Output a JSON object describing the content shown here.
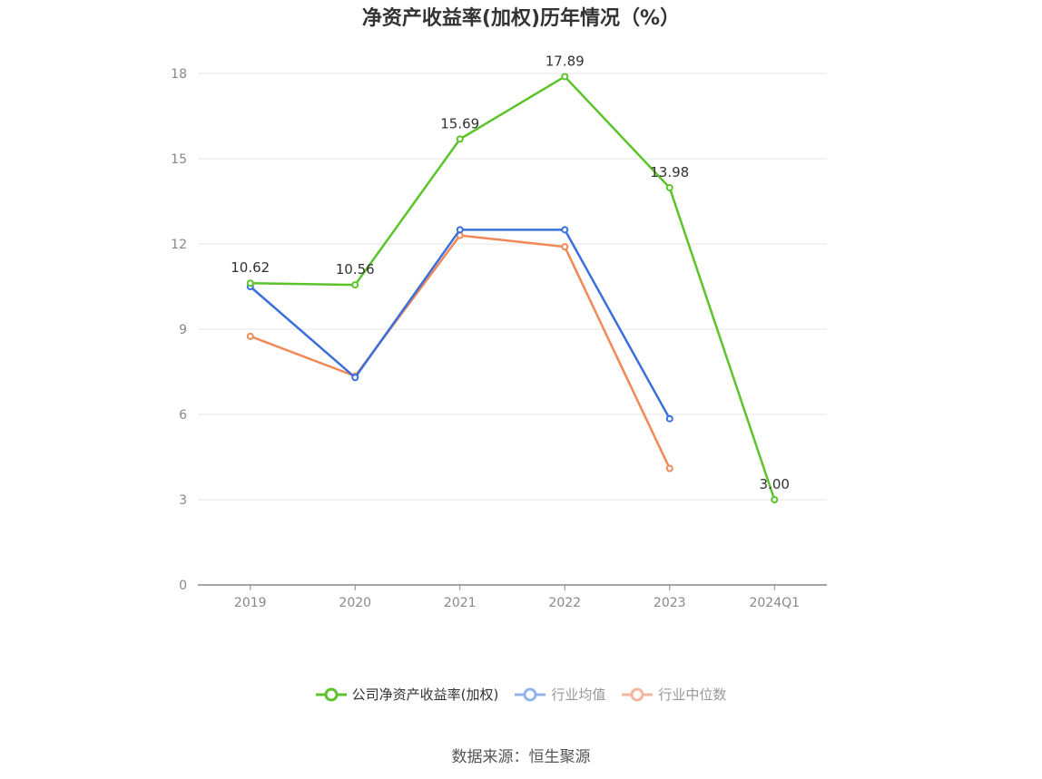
{
  "chart_data": {
    "type": "line",
    "title": "净资产收益率(加权)历年情况（%）",
    "categories": [
      "2019",
      "2020",
      "2021",
      "2022",
      "2023",
      "2024Q1"
    ],
    "ylim": [
      0,
      18
    ],
    "yticks": [
      0,
      3,
      6,
      9,
      12,
      15,
      18
    ],
    "grid": true,
    "legend_position": "bottom",
    "series": [
      {
        "name": "公司净资产收益率(加权)",
        "color": "#5bc42b",
        "values": [
          10.62,
          10.56,
          15.69,
          17.89,
          13.98,
          3.0
        ],
        "labels": [
          "10.62",
          "10.56",
          "15.69",
          "17.89",
          "13.98",
          "3.00"
        ]
      },
      {
        "name": "行业均值",
        "color": "#3a6fdc",
        "values": [
          10.5,
          7.3,
          12.5,
          12.5,
          5.85,
          null
        ]
      },
      {
        "name": "行业中位数",
        "color": "#f08858",
        "values": [
          8.75,
          7.35,
          12.3,
          11.9,
          4.1,
          null
        ]
      }
    ],
    "legend_colors": [
      "#5bc42b",
      "#94b4ec",
      "#f5b6a0"
    ],
    "source": "数据来源：恒生聚源"
  }
}
